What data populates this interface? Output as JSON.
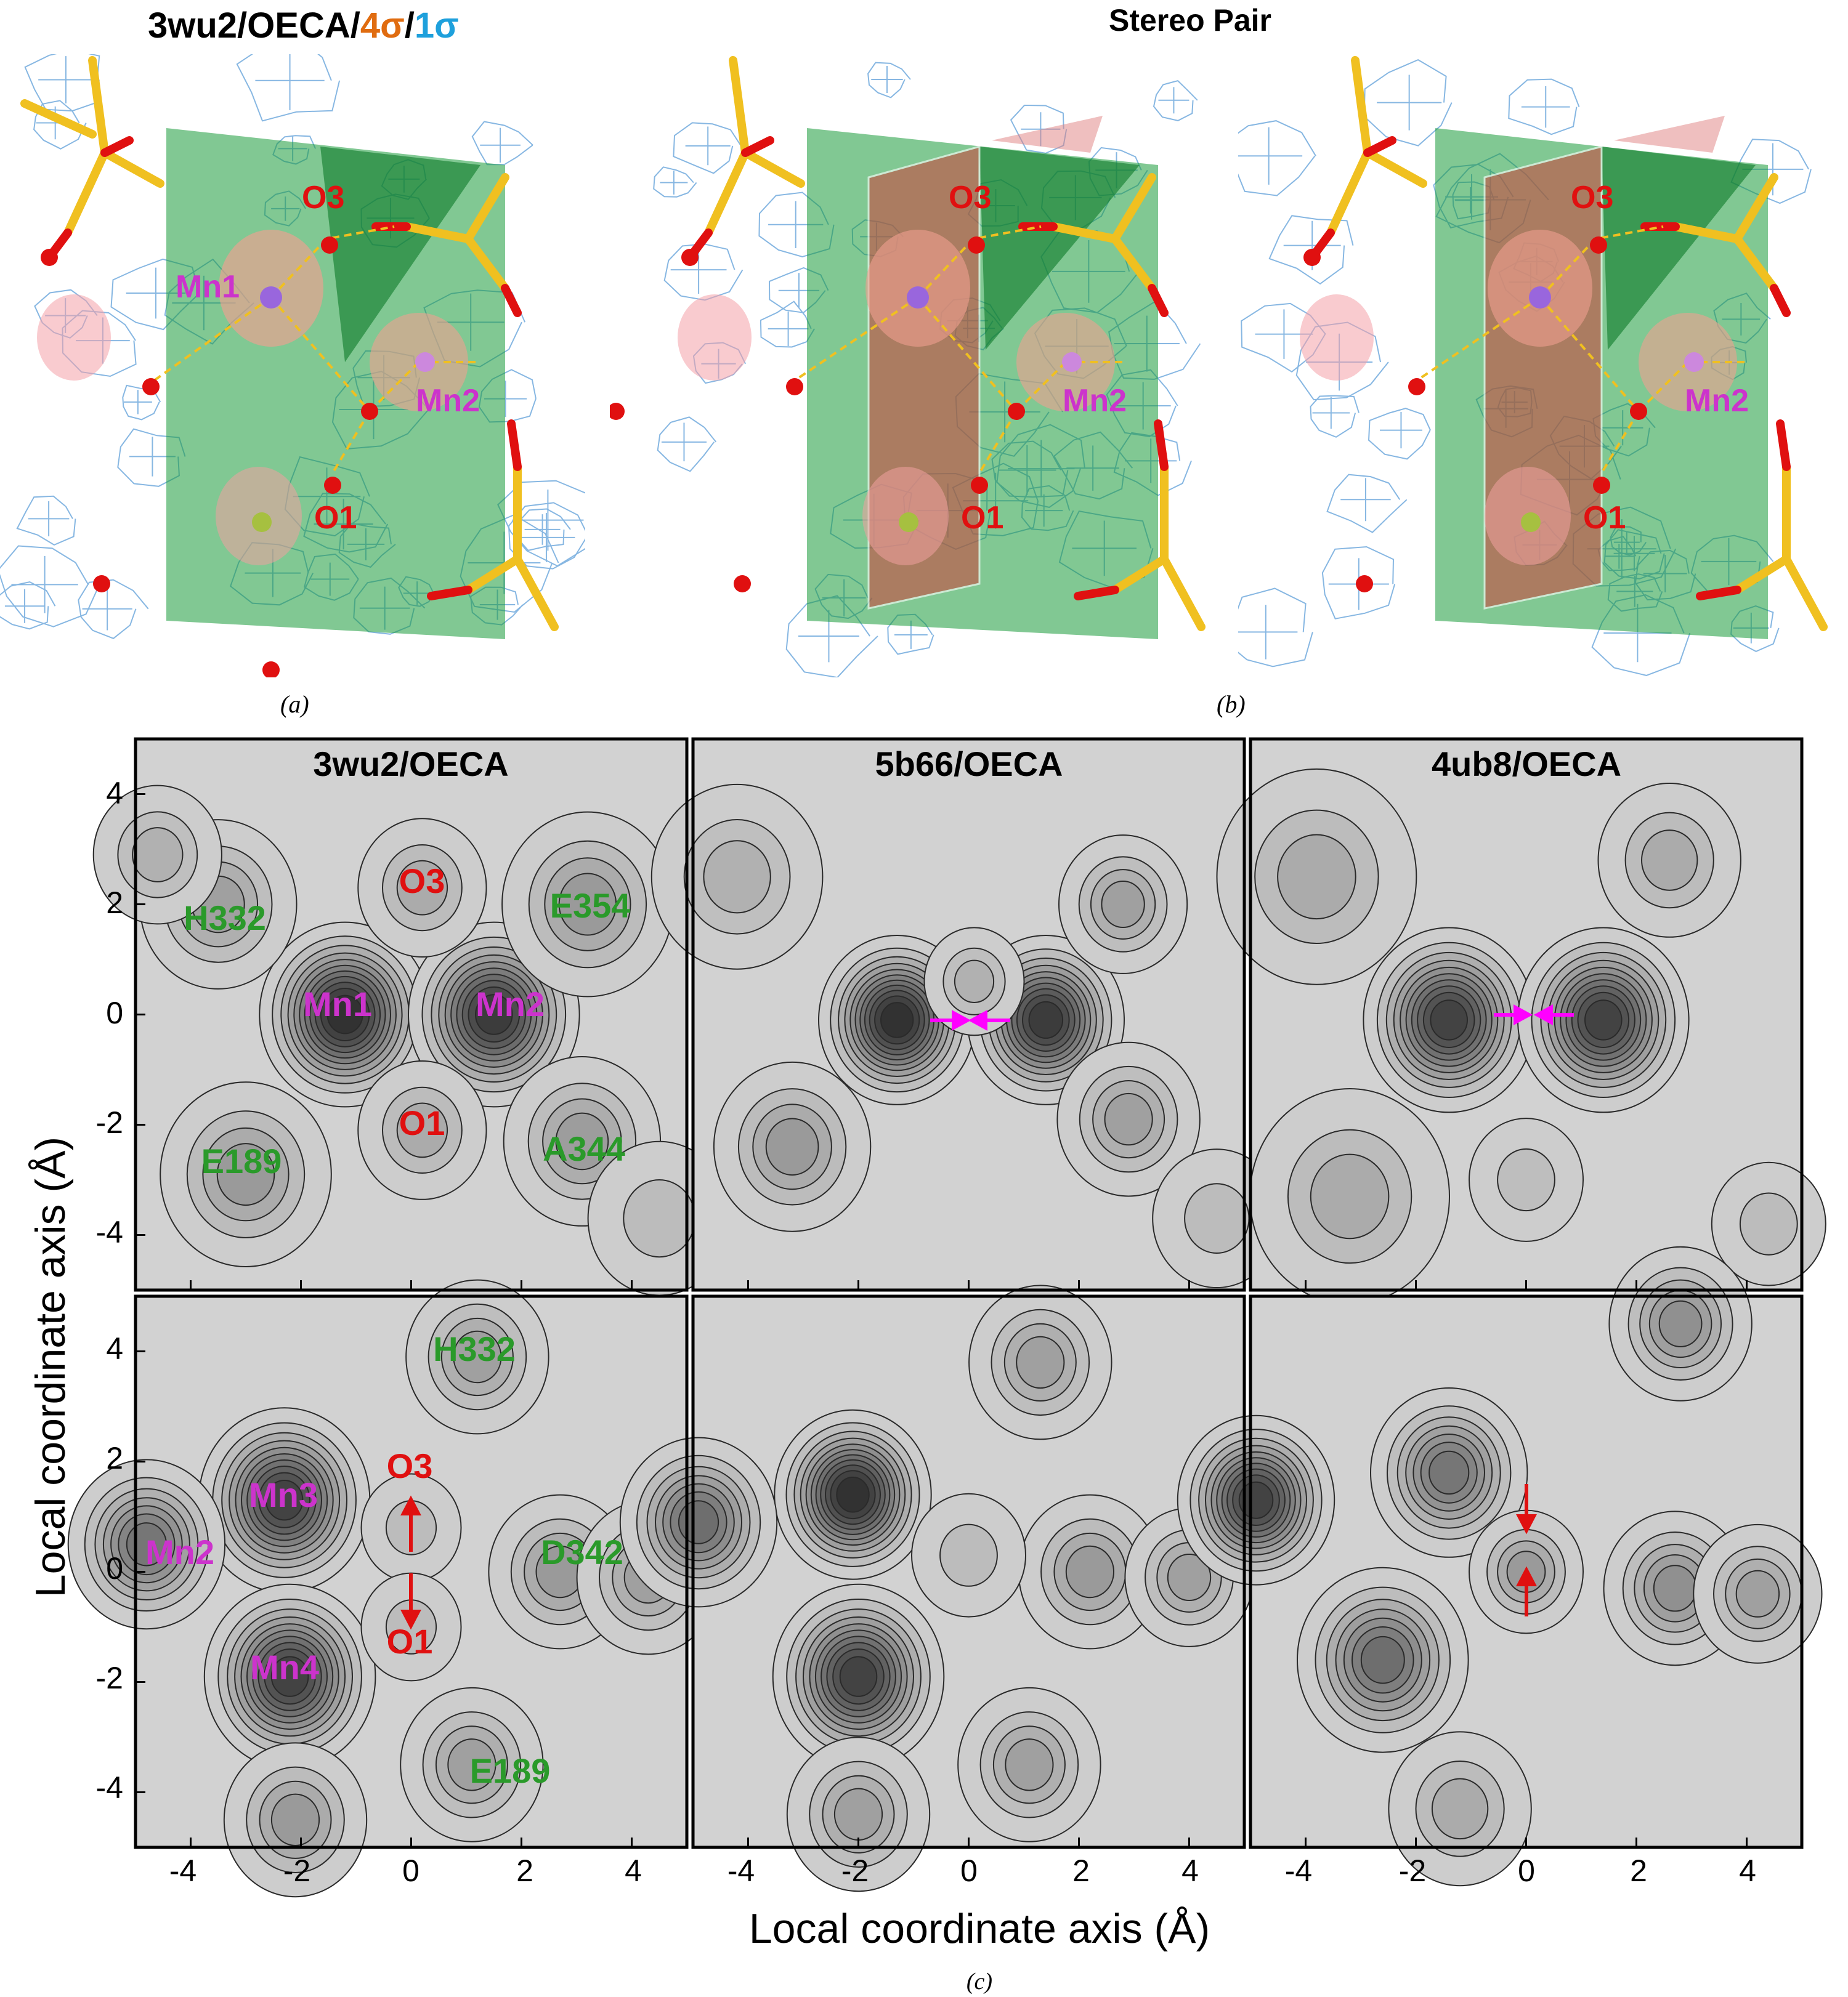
{
  "figure": {
    "panel_a_title_main": "3wu2/OECA/",
    "panel_a_title_s4": "4σ",
    "panel_a_title_slash": "/",
    "panel_a_title_s1": "1σ",
    "panel_b_title": "Stereo Pair",
    "label_a": "(a)",
    "label_b": "(b)",
    "label_c": "(c)"
  },
  "molecule": {
    "labels": {
      "mn1": "Mn1",
      "mn2": "Mn2",
      "o1": "O1",
      "o3": "O3"
    },
    "colors": {
      "mn": "#cc33cc",
      "o": "#e01010",
      "carbon": "#f0c020",
      "mesh": "#4a90d9",
      "plane_green": "#1a9a3a",
      "plane_red": "#c84a40"
    }
  },
  "contour_panels": {
    "top_titles": [
      "3wu2/OECA",
      "5b66/OECA",
      "4ub8/OECA"
    ],
    "top_left_labels": {
      "o3": "O3",
      "o1": "O1",
      "mn1": "Mn1",
      "mn2": "Mn2",
      "h332": "H332",
      "e354": "E354",
      "e189": "E189",
      "a344": "A344"
    },
    "bottom_left_labels": {
      "h332": "H332",
      "mn3": "Mn3",
      "mn2": "Mn2",
      "o3": "O3",
      "o1": "O1",
      "d342": "D342",
      "mn4": "Mn4",
      "e189": "E189"
    },
    "x_ticks": [
      "-4",
      "-2",
      "0",
      "2",
      "4"
    ],
    "y_ticks": [
      "4",
      "2",
      "0",
      "-2",
      "-4"
    ],
    "xlabel": "Local coordinate axis (Å)",
    "ylabel": "Local coordinate axis (Å)"
  },
  "chart_data": [
    {
      "type": "heatmap",
      "title": "3wu2/OECA",
      "row": "top",
      "xlim": [
        -5,
        5
      ],
      "ylim": [
        -5,
        5
      ],
      "peaks": [
        {
          "x": -1.2,
          "y": 0.0,
          "h": 1.0,
          "s": 0.6
        },
        {
          "x": 1.5,
          "y": 0.0,
          "h": 0.95,
          "s": 0.6
        },
        {
          "x": 0.2,
          "y": 2.3,
          "h": 0.3,
          "s": 0.45
        },
        {
          "x": 0.2,
          "y": -2.1,
          "h": 0.3,
          "s": 0.45
        },
        {
          "x": -3.5,
          "y": 2.0,
          "h": 0.35,
          "s": 0.55
        },
        {
          "x": 3.2,
          "y": 2.0,
          "h": 0.4,
          "s": 0.6
        },
        {
          "x": -3.0,
          "y": -2.9,
          "h": 0.4,
          "s": 0.6
        },
        {
          "x": 3.1,
          "y": -2.3,
          "h": 0.38,
          "s": 0.55
        },
        {
          "x": 4.5,
          "y": -3.7,
          "h": 0.2,
          "s": 0.5
        },
        {
          "x": -4.6,
          "y": 2.9,
          "h": 0.25,
          "s": 0.45
        }
      ]
    },
    {
      "type": "heatmap",
      "title": "5b66/OECA",
      "row": "top",
      "xlim": [
        -5,
        5
      ],
      "ylim": [
        -5,
        5
      ],
      "peaks": [
        {
          "x": -1.3,
          "y": -0.1,
          "h": 1.0,
          "s": 0.55
        },
        {
          "x": 1.4,
          "y": -0.1,
          "h": 0.95,
          "s": 0.55
        },
        {
          "x": 0.1,
          "y": 0.6,
          "h": 0.25,
          "s": 0.35
        },
        {
          "x": -3.2,
          "y": -2.4,
          "h": 0.4,
          "s": 0.55
        },
        {
          "x": 2.9,
          "y": -1.9,
          "h": 0.35,
          "s": 0.5
        },
        {
          "x": 2.8,
          "y": 2.0,
          "h": 0.35,
          "s": 0.45
        },
        {
          "x": -4.2,
          "y": 2.5,
          "h": 0.25,
          "s": 0.6
        },
        {
          "x": 4.5,
          "y": -3.7,
          "h": 0.2,
          "s": 0.45
        }
      ]
    },
    {
      "type": "heatmap",
      "title": "4ub8/OECA",
      "row": "top",
      "xlim": [
        -5,
        5
      ],
      "ylim": [
        -5,
        5
      ],
      "peaks": [
        {
          "x": -1.4,
          "y": -0.1,
          "h": 0.9,
          "s": 0.6
        },
        {
          "x": 1.4,
          "y": -0.1,
          "h": 0.9,
          "s": 0.6
        },
        {
          "x": -3.8,
          "y": 2.5,
          "h": 0.3,
          "s": 0.7
        },
        {
          "x": 2.6,
          "y": 2.8,
          "h": 0.3,
          "s": 0.5
        },
        {
          "x": -3.2,
          "y": -3.3,
          "h": 0.3,
          "s": 0.7
        },
        {
          "x": 0.0,
          "y": -3.0,
          "h": 0.18,
          "s": 0.4
        },
        {
          "x": 4.4,
          "y": -3.8,
          "h": 0.2,
          "s": 0.4
        }
      ]
    },
    {
      "type": "heatmap",
      "title": "",
      "row": "bottom",
      "xlim": [
        -5,
        5
      ],
      "ylim": [
        -5,
        5
      ],
      "peaks": [
        {
          "x": -2.3,
          "y": 1.3,
          "h": 0.9,
          "s": 0.6
        },
        {
          "x": -2.2,
          "y": -1.9,
          "h": 0.9,
          "s": 0.6
        },
        {
          "x": -4.8,
          "y": 0.5,
          "h": 0.6,
          "s": 0.55
        },
        {
          "x": 2.7,
          "y": 0.0,
          "h": 0.4,
          "s": 0.5
        },
        {
          "x": 4.3,
          "y": -0.1,
          "h": 0.35,
          "s": 0.5
        },
        {
          "x": 1.2,
          "y": 3.9,
          "h": 0.35,
          "s": 0.5
        },
        {
          "x": 0.0,
          "y": 0.8,
          "h": 0.2,
          "s": 0.35
        },
        {
          "x": 0.0,
          "y": -1.0,
          "h": 0.2,
          "s": 0.35
        },
        {
          "x": 1.1,
          "y": -3.5,
          "h": 0.35,
          "s": 0.5
        },
        {
          "x": -2.1,
          "y": -4.5,
          "h": 0.4,
          "s": 0.5
        }
      ]
    },
    {
      "type": "heatmap",
      "title": "",
      "row": "bottom",
      "xlim": [
        -5,
        5
      ],
      "ylim": [
        -5,
        5
      ],
      "peaks": [
        {
          "x": -2.1,
          "y": 1.4,
          "h": 1.0,
          "s": 0.55
        },
        {
          "x": -2.0,
          "y": -1.9,
          "h": 0.9,
          "s": 0.6
        },
        {
          "x": -4.9,
          "y": 0.9,
          "h": 0.65,
          "s": 0.55
        },
        {
          "x": 2.2,
          "y": 0.0,
          "h": 0.4,
          "s": 0.5
        },
        {
          "x": 4.0,
          "y": -0.1,
          "h": 0.35,
          "s": 0.45
        },
        {
          "x": 1.3,
          "y": 3.8,
          "h": 0.35,
          "s": 0.5
        },
        {
          "x": 0.0,
          "y": 0.3,
          "h": 0.2,
          "s": 0.4
        },
        {
          "x": 1.1,
          "y": -3.5,
          "h": 0.35,
          "s": 0.5
        },
        {
          "x": -2.0,
          "y": -4.4,
          "h": 0.35,
          "s": 0.5
        }
      ]
    },
    {
      "type": "heatmap",
      "title": "",
      "row": "bottom",
      "xlim": [
        -5,
        5
      ],
      "ylim": [
        -5,
        5
      ],
      "peaks": [
        {
          "x": -4.9,
          "y": 1.3,
          "h": 0.9,
          "s": 0.55
        },
        {
          "x": -1.4,
          "y": 1.8,
          "h": 0.6,
          "s": 0.55
        },
        {
          "x": -2.6,
          "y": -1.6,
          "h": 0.65,
          "s": 0.6
        },
        {
          "x": 0.0,
          "y": 0.0,
          "h": 0.4,
          "s": 0.4
        },
        {
          "x": 2.7,
          "y": -0.3,
          "h": 0.45,
          "s": 0.5
        },
        {
          "x": 4.2,
          "y": -0.4,
          "h": 0.35,
          "s": 0.45
        },
        {
          "x": 2.8,
          "y": 4.5,
          "h": 0.45,
          "s": 0.5
        },
        {
          "x": -1.2,
          "y": -4.3,
          "h": 0.3,
          "s": 0.5
        }
      ]
    }
  ]
}
